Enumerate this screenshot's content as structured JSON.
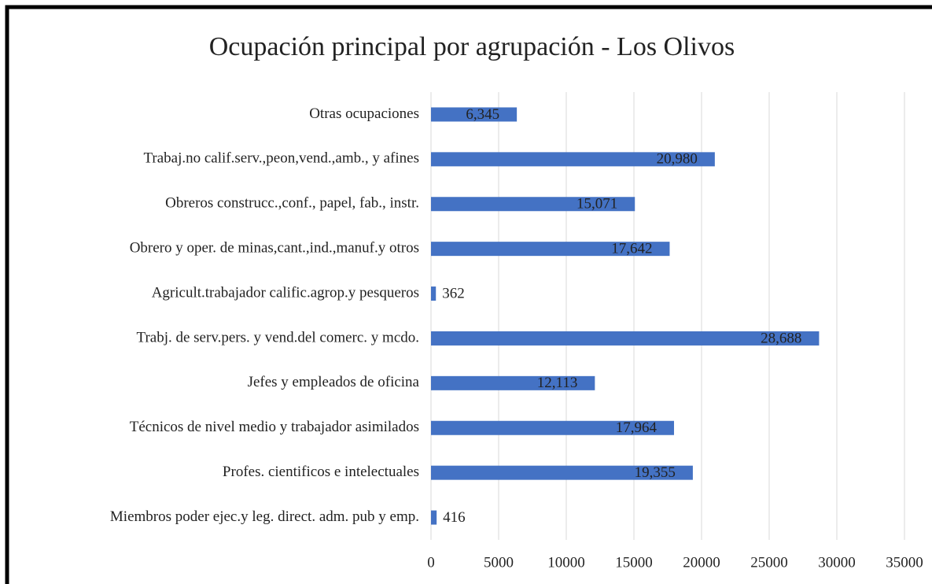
{
  "chart_data": {
    "type": "bar",
    "orientation": "horizontal",
    "title": "Ocupación principal por agrupación - Los Olivos",
    "categories": [
      "Otras ocupaciones",
      "Trabaj.no calif.serv.,peon,vend.,amb., y afines",
      "Obreros construcc.,conf., papel, fab., instr.",
      "Obrero y oper. de minas,cant.,ind.,manuf.y otros",
      "Agricult.trabajador calific.agrop.y pesqueros",
      "Trabj. de serv.pers. y vend.del comerc. y mcdo.",
      "Jefes y empleados de oficina",
      "Técnicos de nivel medio y trabajador asimilados",
      "Profes. cientificos e intelectuales",
      "Miembros poder ejec.y leg. direct. adm. pub y emp."
    ],
    "values": [
      6345,
      20980,
      15071,
      17642,
      362,
      28688,
      12113,
      17964,
      19355,
      416
    ],
    "value_labels": [
      "6,345",
      "20,980",
      "15,071",
      "17,642",
      "362",
      "28,688",
      "12,113",
      "17,964",
      "19,355",
      "416"
    ],
    "color": "#4472c4",
    "xlim": [
      0,
      35000
    ],
    "xticks": [
      0,
      5000,
      10000,
      15000,
      20000,
      25000,
      30000,
      35000
    ],
    "grid": true
  }
}
